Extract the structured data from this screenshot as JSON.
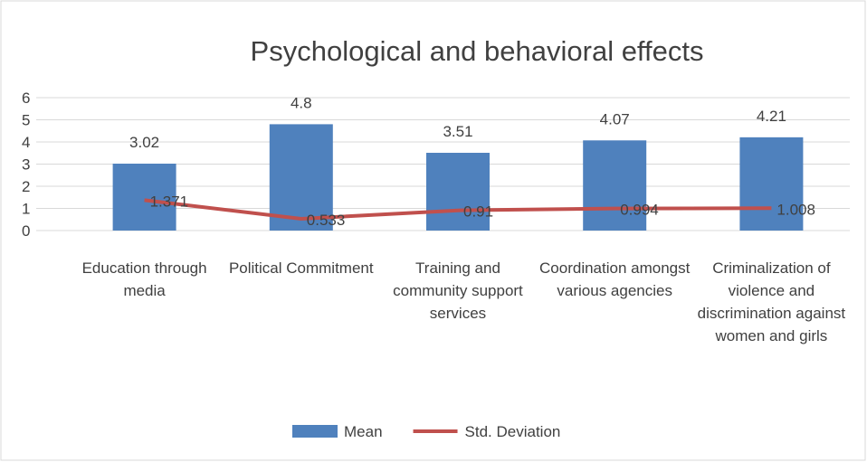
{
  "chart_data": {
    "type": "combo",
    "title": "Psychological and behavioral effects",
    "categories": [
      "Education through media",
      "Political Commitment",
      "Training and community support services",
      "Coordination amongst various agencies",
      "Criminalization of violence and discrimination against women and girls"
    ],
    "series": [
      {
        "name": "Mean",
        "type": "bar",
        "color": "#4f81bd",
        "values": [
          3.02,
          4.8,
          3.51,
          4.07,
          4.21
        ]
      },
      {
        "name": "Std. Deviation",
        "type": "line",
        "color": "#c0504d",
        "values": [
          1.371,
          0.533,
          0.91,
          0.994,
          1.008
        ]
      }
    ],
    "ylim": [
      0,
      6
    ],
    "yticks": [
      0,
      1,
      2,
      3,
      4,
      5,
      6
    ],
    "grid": true,
    "legend": "bottom"
  }
}
